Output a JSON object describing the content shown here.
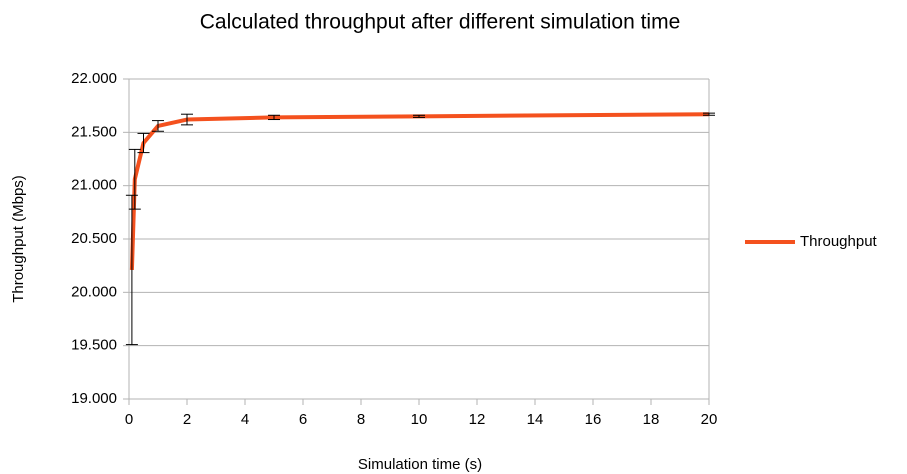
{
  "chart_data": {
    "type": "line",
    "title": "Calculated throughput after different simulation time",
    "x_label": "Simulation time (s)",
    "y_label": "Throughput (Mbps)",
    "x": [
      0.1,
      0.2,
      0.5,
      1,
      2,
      5,
      10,
      20
    ],
    "series": [
      {
        "name": "Throughput",
        "color": "#f4511e",
        "values": [
          20.21,
          21.06,
          21.4,
          21.56,
          21.62,
          21.64,
          21.65,
          21.67
        ],
        "errors": [
          0.7,
          0.28,
          0.09,
          0.05,
          0.05,
          0.02,
          0.01,
          0.01
        ]
      }
    ],
    "xlim": [
      0,
      20
    ],
    "xticks": [
      0,
      2,
      4,
      6,
      8,
      10,
      12,
      14,
      16,
      18,
      20
    ],
    "ylim": [
      19,
      22
    ],
    "yticks": [
      {
        "value": 19,
        "label": "19.000"
      },
      {
        "value": 19.5,
        "label": "19.500"
      },
      {
        "value": 20,
        "label": "20.000"
      },
      {
        "value": 20.5,
        "label": "20.500"
      },
      {
        "value": 21,
        "label": "21.000"
      },
      {
        "value": 21.5,
        "label": "21.500"
      },
      {
        "value": 22,
        "label": "22.000"
      }
    ],
    "grid": true,
    "legend": "right"
  }
}
